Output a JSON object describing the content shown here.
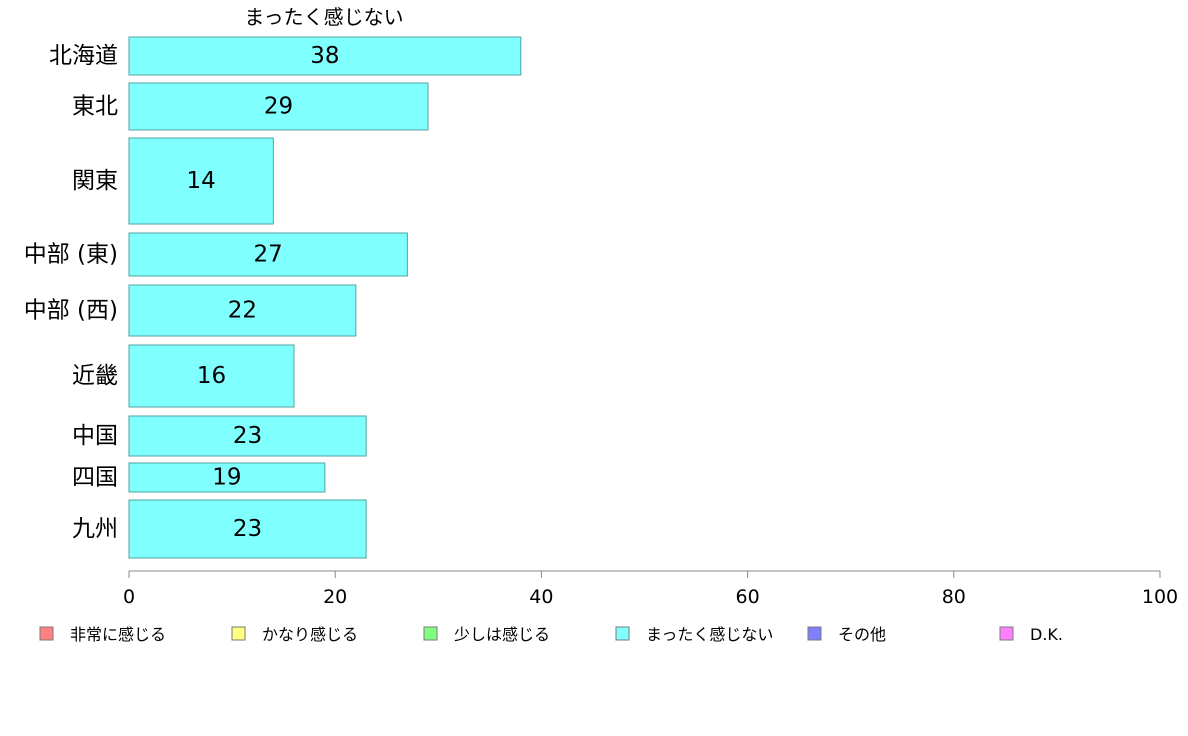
{
  "chart_data": {
    "type": "bar",
    "orientation": "horizontal",
    "title": "まったく感じない",
    "categories": [
      "北海道",
      "東北",
      "関東",
      "中部 (東)",
      "中部 (西)",
      "近畿",
      "中国",
      "四国",
      "九州"
    ],
    "values": [
      38,
      29,
      14,
      27,
      22,
      16,
      23,
      19,
      23
    ],
    "xlim": [
      0,
      100
    ],
    "xticks": [
      "0",
      "20",
      "40",
      "60",
      "80",
      "100"
    ],
    "grid": false,
    "bar_color": "#80ffff",
    "bar_border_color": "#4fa3a3",
    "legend": {
      "placement": "bottom",
      "entries": [
        {
          "label": "非常に感じる",
          "color": "#ff8080"
        },
        {
          "label": "かなり感じる",
          "color": "#ffff80"
        },
        {
          "label": "少しは感じる",
          "color": "#80ff80"
        },
        {
          "label": "まったく感じない",
          "color": "#80ffff"
        },
        {
          "label": "その他",
          "color": "#8080ff"
        },
        {
          "label": "D.K.",
          "color": "#ff80ff"
        }
      ]
    }
  }
}
